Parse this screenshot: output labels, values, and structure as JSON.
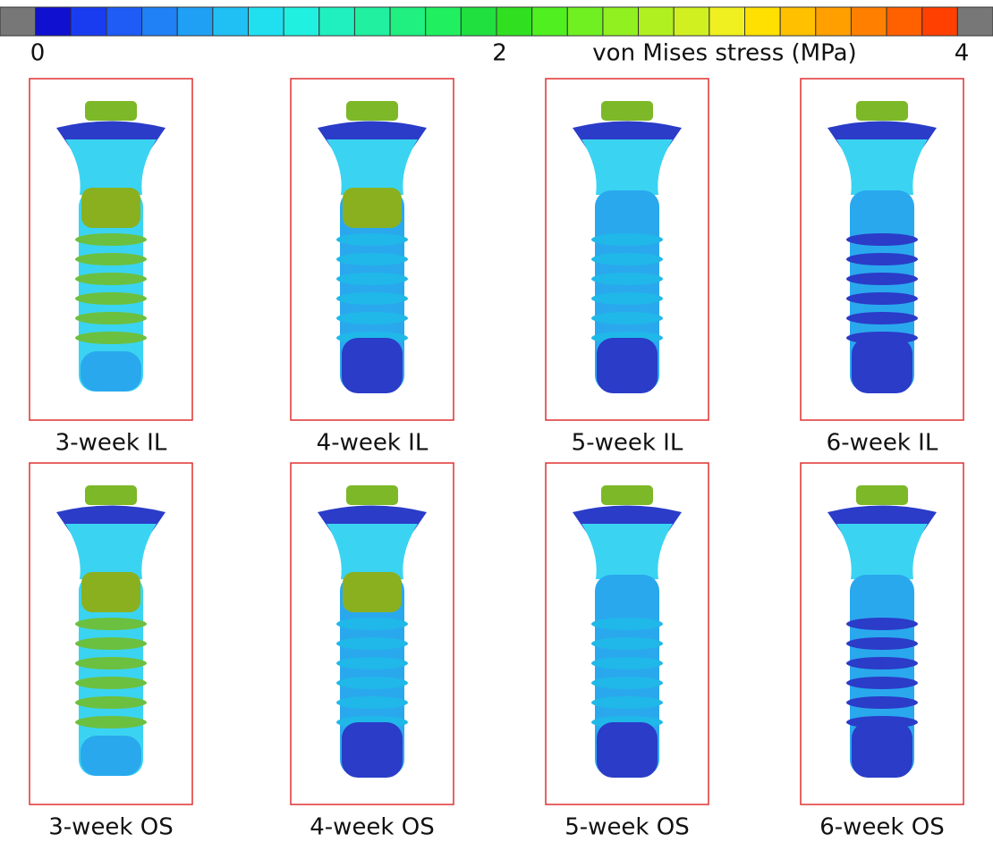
{
  "colorbar": {
    "label": "von Mises stress (MPa)",
    "range": [
      0,
      4
    ],
    "ticks": [
      0,
      2,
      4
    ],
    "end_color": "#777777",
    "colors": [
      "#1010d0",
      "#1a3cf0",
      "#1f5cf5",
      "#2080f5",
      "#20a0f5",
      "#20c0f5",
      "#20e0f0",
      "#20f0e0",
      "#20f0c0",
      "#20f0a0",
      "#20f080",
      "#20f060",
      "#20e040",
      "#30e020",
      "#50f020",
      "#70f020",
      "#90f020",
      "#b0f020",
      "#d0f020",
      "#f0f020",
      "#ffe000",
      "#ffc000",
      "#ffa000",
      "#ff8000",
      "#ff6000",
      "#ff4000"
    ]
  },
  "panels": [
    [
      "3-week IL",
      "4-week IL",
      "5-week IL",
      "6-week IL"
    ],
    [
      "3-week OS",
      "4-week OS",
      "5-week OS",
      "6-week OS"
    ]
  ]
}
